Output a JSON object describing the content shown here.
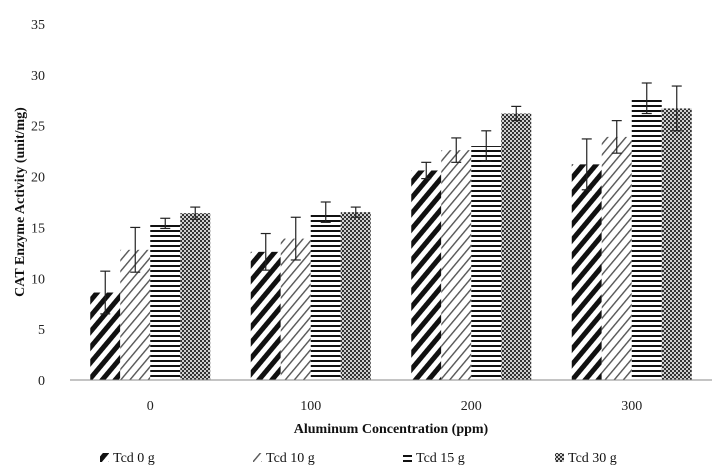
{
  "chart_data": {
    "type": "bar",
    "xlabel": "Aluminum Concentration (ppm)",
    "ylabel": "CAT Enzyme Activity (unit/mg)",
    "categories": [
      "0",
      "100",
      "200",
      "300"
    ],
    "ylim": [
      0,
      35
    ],
    "yticks": [
      0,
      5,
      10,
      15,
      20,
      25,
      30,
      35
    ],
    "grid": false,
    "legend_position": "bottom",
    "series": [
      {
        "name": "Tcd 0 g",
        "pattern": "diagonal-thick",
        "values": [
          8.6,
          12.6,
          20.6,
          21.2
        ],
        "errors": [
          2.1,
          1.8,
          0.8,
          2.5
        ]
      },
      {
        "name": "Tcd 10 g",
        "pattern": "diagonal-light",
        "values": [
          12.8,
          13.9,
          22.6,
          23.9
        ],
        "errors": [
          2.2,
          2.1,
          1.2,
          1.6
        ]
      },
      {
        "name": "Tcd 15 g",
        "pattern": "horizontal",
        "values": [
          15.4,
          16.5,
          23.0,
          27.7
        ],
        "errors": [
          0.5,
          1.0,
          1.5,
          1.5
        ]
      },
      {
        "name": "Tcd 30 g",
        "pattern": "checker",
        "values": [
          16.4,
          16.5,
          26.2,
          26.7
        ],
        "errors": [
          0.6,
          0.5,
          0.7,
          2.2
        ]
      }
    ]
  }
}
